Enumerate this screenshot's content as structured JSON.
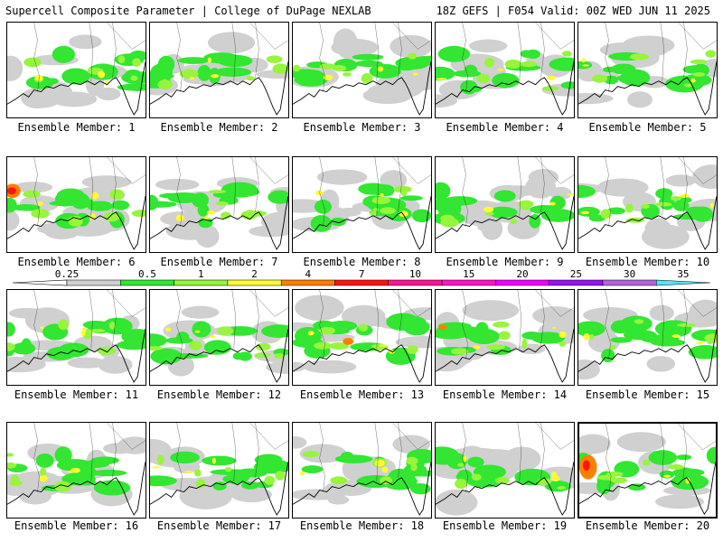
{
  "header": {
    "title": "Supercell Composite Parameter | College of DuPage NEXLAB",
    "valid": "18Z GEFS | F054 Valid: 00Z WED JUN 11 2025"
  },
  "colorbar": {
    "ticks": [
      "0.25",
      "0.5",
      "1",
      "2",
      "4",
      "7",
      "10",
      "15",
      "20",
      "25",
      "30",
      "35"
    ],
    "colors": [
      "#d0d0d0",
      "#32e632",
      "#96f53c",
      "#fffa32",
      "#ff7f00",
      "#ff1414",
      "#ff1493",
      "#ff14c8",
      "#f000ff",
      "#9614f0",
      "#b464dc",
      "#50e6ff"
    ]
  },
  "members": [
    {
      "label": "Ensemble Member: 1"
    },
    {
      "label": "Ensemble Member: 2"
    },
    {
      "label": "Ensemble Member: 3"
    },
    {
      "label": "Ensemble Member: 4"
    },
    {
      "label": "Ensemble Member: 5"
    },
    {
      "label": "Ensemble Member: 6"
    },
    {
      "label": "Ensemble Member: 7"
    },
    {
      "label": "Ensemble Member: 8"
    },
    {
      "label": "Ensemble Member: 9"
    },
    {
      "label": "Ensemble Member: 10"
    },
    {
      "label": "Ensemble Member: 11"
    },
    {
      "label": "Ensemble Member: 12"
    },
    {
      "label": "Ensemble Member: 13"
    },
    {
      "label": "Ensemble Member: 14"
    },
    {
      "label": "Ensemble Member: 15"
    },
    {
      "label": "Ensemble Member: 16"
    },
    {
      "label": "Ensemble Member: 17"
    },
    {
      "label": "Ensemble Member: 18"
    },
    {
      "label": "Ensemble Member: 19"
    },
    {
      "label": "Ensemble Member: 20"
    }
  ]
}
